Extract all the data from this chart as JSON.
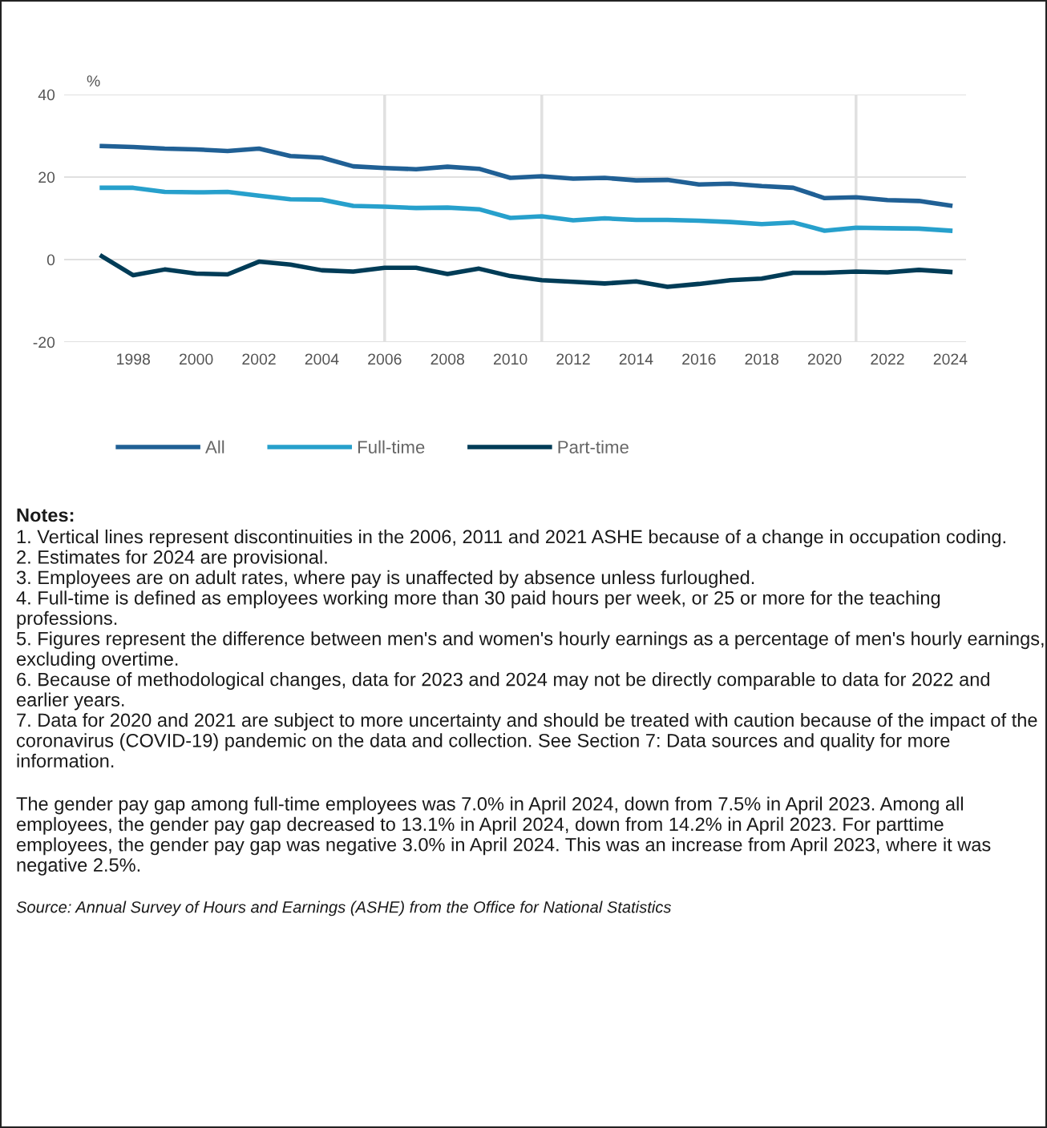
{
  "chart_data": {
    "type": "line",
    "ylabel": "%",
    "x": [
      1997,
      1998,
      1999,
      2000,
      2001,
      2002,
      2003,
      2004,
      2005,
      2006,
      2007,
      2008,
      2009,
      2010,
      2011,
      2012,
      2013,
      2014,
      2015,
      2016,
      2017,
      2018,
      2019,
      2020,
      2021,
      2022,
      2023,
      2024
    ],
    "series": [
      {
        "name": "All",
        "color": "#206095",
        "values": [
          27.5,
          27.3,
          26.9,
          26.7,
          26.3,
          26.9,
          25.1,
          24.7,
          22.6,
          22.2,
          21.9,
          22.5,
          22.0,
          19.8,
          20.2,
          19.6,
          19.8,
          19.2,
          19.3,
          18.2,
          18.4,
          17.8,
          17.4,
          14.9,
          15.1,
          14.4,
          14.2,
          13.1
        ]
      },
      {
        "name": "Full-time",
        "color": "#27a0cc",
        "values": [
          17.4,
          17.4,
          16.4,
          16.3,
          16.4,
          15.5,
          14.6,
          14.5,
          13.0,
          12.8,
          12.5,
          12.6,
          12.2,
          10.1,
          10.5,
          9.5,
          10.0,
          9.6,
          9.6,
          9.4,
          9.1,
          8.6,
          9.0,
          7.0,
          7.7,
          7.6,
          7.5,
          7.0
        ]
      },
      {
        "name": "Part-time",
        "color": "#003c57",
        "values": [
          0.8,
          -3.8,
          -2.4,
          -3.4,
          -3.6,
          -0.5,
          -1.2,
          -2.6,
          -2.9,
          -2.0,
          -2.0,
          -3.5,
          -2.2,
          -4.0,
          -5.0,
          -5.4,
          -5.8,
          -5.3,
          -6.6,
          -5.9,
          -5.0,
          -4.6,
          -3.2,
          -3.2,
          -2.9,
          -3.1,
          -2.5,
          -3.0
        ]
      }
    ],
    "xlim": [
      1995.8,
      2024.5
    ],
    "xticks": [
      1998,
      2000,
      2002,
      2004,
      2006,
      2008,
      2010,
      2012,
      2014,
      2016,
      2018,
      2020,
      2022,
      2024
    ],
    "ylim": [
      -20,
      40
    ],
    "yticks": [
      -20,
      0,
      20,
      40
    ],
    "grid": "y",
    "legend": "bottom",
    "marker": "none",
    "line_style": "solid",
    "ref_lines": [
      {
        "axis": "x",
        "value": 2006,
        "color": "#e0e0e0"
      },
      {
        "axis": "x",
        "value": 2011,
        "color": "#e0e0e0"
      },
      {
        "axis": "x",
        "value": 2021,
        "color": "#e0e0e0"
      }
    ],
    "annotations": [
      "Notes:",
      "1. Vertical lines represent discontinuities in the 2006, 2011 and 2021 ASHE because of a change in occupation coding.\n2. Estimates for 2024 are provisional.\n3. Employees are on adult rates, where pay is unaffected by absence unless furloughed.\n4. Full-time is defined as employees working more than 30 paid hours per week, or 25 or more for the teaching professions.\n5. Figures represent the difference between men's and women's hourly earnings as a percentage of men's hourly earnings, excluding overtime.\n6. Because of methodological changes, data for 2023 and 2024 may not be directly comparable to data for 2022 and earlier years.\n7. Data for 2020 and 2021 are subject to more uncertainty and should be treated with caution because of the impact of the coronavirus (COVID-19) pandemic on the data and collection. See Section 7: Data sources and quality for more information.",
      "The gender pay gap among full-time employees was 7.0% in April 2024, down from 7.5% in April 2023. Among all employees, the gender pay gap decreased to 13.1% in April 2024, down from 14.2% in April 2023. For parttime employees, the gender pay gap was negative 3.0% in April 2024. This was an increase from April 2023, where it was negative 2.5%.",
      "Source: Annual Survey of Hours and Earnings (ASHE) from the Office for National Statistics"
    ]
  }
}
